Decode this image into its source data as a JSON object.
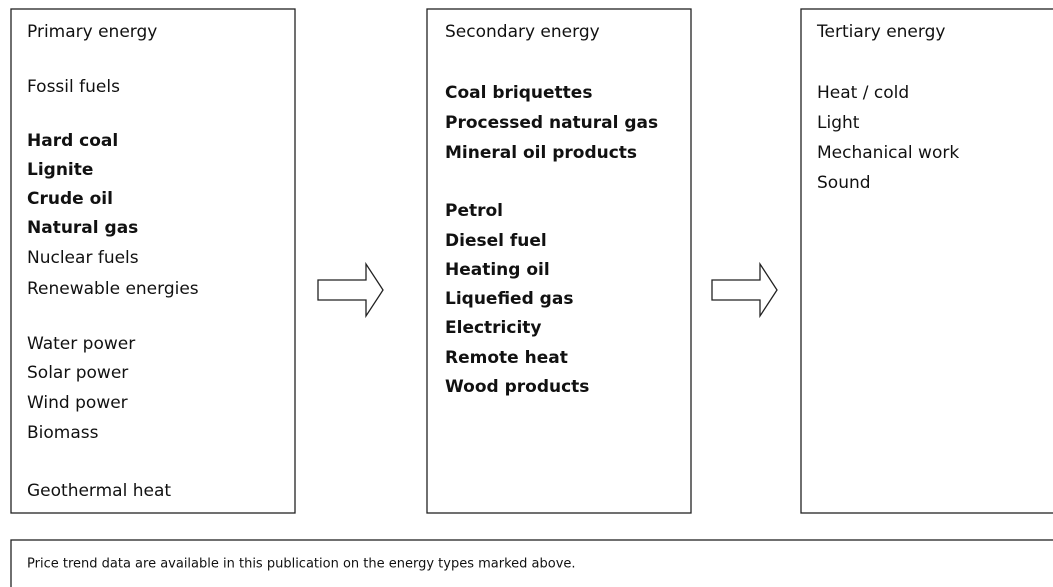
{
  "columns": [
    {
      "title": "Primary energy",
      "lines": [
        {
          "text": "Fossil fuels",
          "bold": false
        },
        {
          "text": "Hard coal",
          "bold": true
        },
        {
          "text": "Lignite",
          "bold": true
        },
        {
          "text": "Crude oil",
          "bold": true
        },
        {
          "text": "Natural gas",
          "bold": true
        },
        {
          "text": "Nuclear fuels",
          "bold": false
        },
        {
          "text": "Renewable energies",
          "bold": false
        },
        {
          "text": "Water power",
          "bold": false
        },
        {
          "text": "Solar power",
          "bold": false
        },
        {
          "text": "Wind power",
          "bold": false
        },
        {
          "text": "Biomass",
          "bold": false
        },
        {
          "text": "Geothermal heat",
          "bold": false
        }
      ]
    },
    {
      "title": "Secondary energy",
      "lines": [
        {
          "text": "Coal briquettes",
          "bold": true
        },
        {
          "text": "Processed natural gas",
          "bold": true
        },
        {
          "text": "Mineral oil products",
          "bold": true
        },
        {
          "text": "Petrol",
          "bold": true
        },
        {
          "text": "Diesel fuel",
          "bold": true
        },
        {
          "text": "Heating oil",
          "bold": true
        },
        {
          "text": "Liquefied gas",
          "bold": true
        },
        {
          "text": "Electricity",
          "bold": true
        },
        {
          "text": "Remote heat",
          "bold": true
        },
        {
          "text": "Wood products",
          "bold": true
        }
      ]
    },
    {
      "title": "Tertiary energy",
      "lines": [
        {
          "text": "Heat / cold",
          "bold": false
        },
        {
          "text": "Light",
          "bold": false
        },
        {
          "text": "Mechanical work",
          "bold": false
        },
        {
          "text": "Sound",
          "bold": false
        }
      ]
    }
  ],
  "footer": "Price trend data are available in this publication on the energy types marked above."
}
